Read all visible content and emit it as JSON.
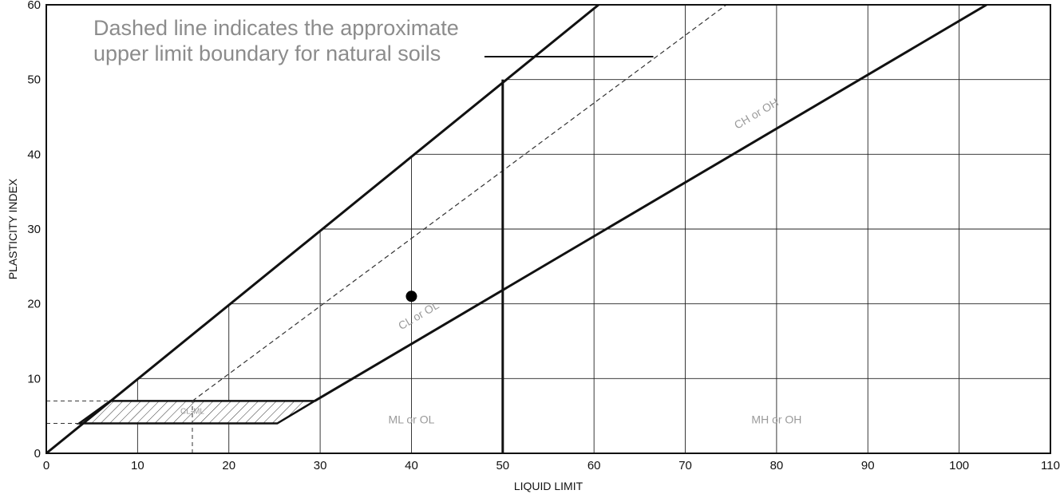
{
  "chart_data": {
    "type": "scatter",
    "xlabel": "LIQUID LIMIT",
    "ylabel": "PLASTICITY INDEX",
    "xlim": [
      0,
      110
    ],
    "ylim": [
      0,
      60
    ],
    "x_ticks": [
      0,
      10,
      20,
      30,
      40,
      50,
      60,
      70,
      80,
      90,
      100,
      110
    ],
    "y_ticks": [
      0,
      10,
      20,
      30,
      40,
      50,
      60
    ],
    "grid": true,
    "points": [
      {
        "x": 40,
        "y": 21
      }
    ],
    "lines": {
      "u_line": [
        [
          0,
          0
        ],
        [
          60.5,
          60
        ]
      ],
      "upper_limit_dashed": [
        [
          16,
          7
        ],
        [
          74.5,
          60
        ]
      ],
      "a_line": [
        [
          29.4,
          7
        ],
        [
          103,
          60
        ]
      ],
      "ll_50_divider": [
        [
          50,
          0
        ],
        [
          50,
          50
        ]
      ]
    },
    "cl_ml_band": {
      "polygon": [
        [
          3.6,
          4
        ],
        [
          25.3,
          4
        ],
        [
          29.4,
          7
        ],
        [
          7,
          7
        ]
      ],
      "guides": {
        "y_levels": [
          4,
          7
        ],
        "x_level": 16
      }
    },
    "zone_labels": [
      {
        "text": "CH or OH",
        "x": 78,
        "y": 45
      },
      {
        "text": "CL or OL",
        "x": 41,
        "y": 18
      },
      {
        "text": "ML or OL",
        "x": 40,
        "y": 4
      },
      {
        "text": "MH or OH",
        "x": 80,
        "y": 4
      },
      {
        "text": "CL-ML",
        "x": 16,
        "y": 5.3
      }
    ],
    "annotation": {
      "lines": [
        "Dashed line indicates the approximate",
        "upper limit boundary for natural soils"
      ],
      "pointer": [
        [
          48,
          53
        ],
        [
          66.5,
          53
        ]
      ]
    }
  }
}
